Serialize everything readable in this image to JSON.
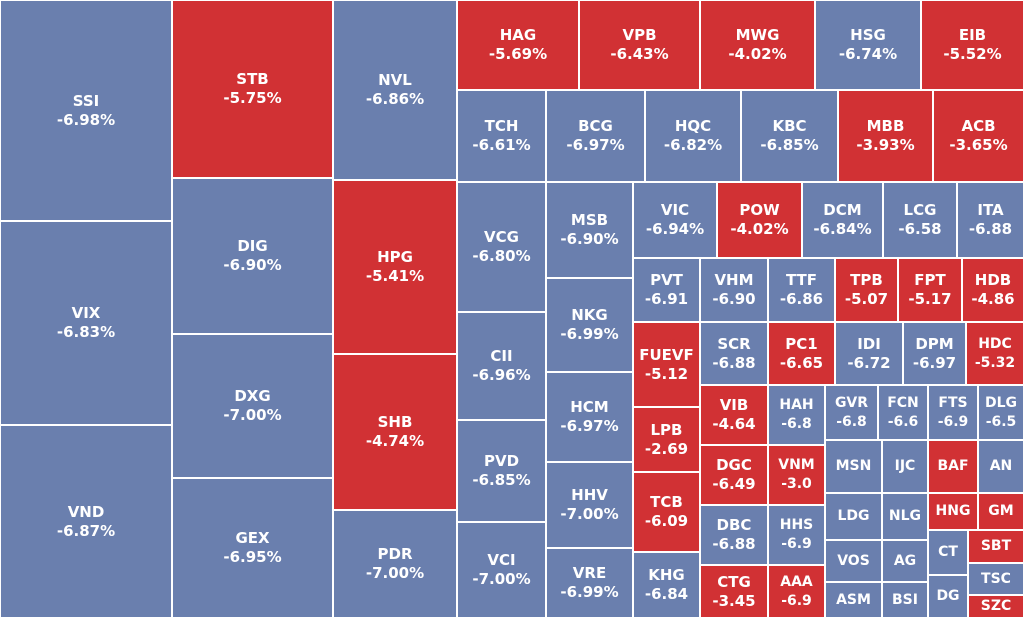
{
  "tiles": [
    {
      "label": "SSI",
      "change": "-6.98%",
      "color": "#6a7fae"
    },
    {
      "label": "VIX",
      "change": "-6.83%",
      "color": "#6a7fae"
    },
    {
      "label": "VND",
      "change": "-6.87%",
      "color": "#6a7fae"
    },
    {
      "label": "STB",
      "change": "-5.75%",
      "color": "#d13134"
    },
    {
      "label": "DIG",
      "change": "-6.90%",
      "color": "#6a7fae"
    },
    {
      "label": "DXG",
      "change": "-7.00%",
      "color": "#6a7fae"
    },
    {
      "label": "GEX",
      "change": "-6.95%",
      "color": "#6a7fae"
    },
    {
      "label": "NVL",
      "change": "-6.86%",
      "color": "#6a7fae"
    },
    {
      "label": "HPG",
      "change": "-5.41%",
      "color": "#d13134"
    },
    {
      "label": "SHB",
      "change": "-4.74%",
      "color": "#d13134"
    },
    {
      "label": "PDR",
      "change": "-7.00%",
      "color": "#6a7fae"
    },
    {
      "label": "HAG",
      "change": "-5.69%",
      "color": "#d13134"
    },
    {
      "label": "VPB",
      "change": "-6.43%",
      "color": "#d13134"
    },
    {
      "label": "MWG",
      "change": "-4.02%",
      "color": "#d13134"
    },
    {
      "label": "HSG",
      "change": "-6.74%",
      "color": "#6a7fae"
    },
    {
      "label": "EIB",
      "change": "-5.52%",
      "color": "#d13134"
    },
    {
      "label": "TCH",
      "change": "-6.61%",
      "color": "#6a7fae"
    },
    {
      "label": "BCG",
      "change": "-6.97%",
      "color": "#6a7fae"
    },
    {
      "label": "HQC",
      "change": "-6.82%",
      "color": "#6a7fae"
    },
    {
      "label": "KBC",
      "change": "-6.85%",
      "color": "#6a7fae"
    },
    {
      "label": "MBB",
      "change": "-3.93%",
      "color": "#d13134"
    },
    {
      "label": "ACB",
      "change": "-3.65%",
      "color": "#d13134"
    },
    {
      "label": "VCG",
      "change": "-6.80%",
      "color": "#6a7fae"
    },
    {
      "label": "CII",
      "change": "-6.96%",
      "color": "#6a7fae"
    },
    {
      "label": "PVD",
      "change": "-6.85%",
      "color": "#6a7fae"
    },
    {
      "label": "VCI",
      "change": "-7.00%",
      "color": "#6a7fae"
    },
    {
      "label": "MSB",
      "change": "-6.90%",
      "color": "#6a7fae"
    },
    {
      "label": "NKG",
      "change": "-6.99%",
      "color": "#6a7fae"
    },
    {
      "label": "HCM",
      "change": "-6.97%",
      "color": "#6a7fae"
    },
    {
      "label": "HHV",
      "change": "-7.00%",
      "color": "#6a7fae"
    },
    {
      "label": "VRE",
      "change": "-6.99%",
      "color": "#6a7fae"
    },
    {
      "label": "VIC",
      "change": "-6.94%",
      "color": "#6a7fae"
    },
    {
      "label": "POW",
      "change": "-4.02%",
      "color": "#d13134"
    },
    {
      "label": "DCM",
      "change": "-6.84%",
      "color": "#6a7fae"
    },
    {
      "label": "LCG",
      "change": "-6.58",
      "color": "#6a7fae"
    },
    {
      "label": "ITA",
      "change": "-6.88",
      "color": "#6a7fae"
    },
    {
      "label": "PVT",
      "change": "-6.91",
      "color": "#6a7fae"
    },
    {
      "label": "FUEVF",
      "change": "-5.12",
      "color": "#d13134"
    },
    {
      "label": "LPB",
      "change": "-2.69",
      "color": "#d13134"
    },
    {
      "label": "TCB",
      "change": "-6.09",
      "color": "#d13134"
    },
    {
      "label": "KHG",
      "change": "-6.84",
      "color": "#6a7fae"
    },
    {
      "label": "VHM",
      "change": "-6.90",
      "color": "#6a7fae"
    },
    {
      "label": "TTF",
      "change": "-6.86",
      "color": "#6a7fae"
    },
    {
      "label": "TPB",
      "change": "-5.07",
      "color": "#d13134"
    },
    {
      "label": "FPT",
      "change": "-5.17",
      "color": "#d13134"
    },
    {
      "label": "HDB",
      "change": "-4.86",
      "color": "#d13134"
    },
    {
      "label": "SCR",
      "change": "-6.88",
      "color": "#6a7fae"
    },
    {
      "label": "PC1",
      "change": "-6.65",
      "color": "#d13134"
    },
    {
      "label": "IDI",
      "change": "-6.72",
      "color": "#6a7fae"
    },
    {
      "label": "DPM",
      "change": "-6.97",
      "color": "#6a7fae"
    },
    {
      "label": "HDC",
      "change": "-5.32",
      "color": "#d13134"
    },
    {
      "label": "VIB",
      "change": "-4.64",
      "color": "#d13134"
    },
    {
      "label": "DGC",
      "change": "-6.49",
      "color": "#d13134"
    },
    {
      "label": "DBC",
      "change": "-6.88",
      "color": "#6a7fae"
    },
    {
      "label": "CTG",
      "change": "-3.45",
      "color": "#d13134"
    },
    {
      "label": "HAH",
      "change": "-6.8",
      "color": "#6a7fae"
    },
    {
      "label": "VNM",
      "change": "-3.0",
      "color": "#d13134"
    },
    {
      "label": "HHS",
      "change": "-6.9",
      "color": "#6a7fae"
    },
    {
      "label": "AAA",
      "change": "-6.9",
      "color": "#d13134"
    },
    {
      "label": "GVR",
      "change": "-6.8",
      "color": "#6a7fae"
    },
    {
      "label": "FCN",
      "change": "-6.6",
      "color": "#6a7fae"
    },
    {
      "label": "FTS",
      "change": "-6.9",
      "color": "#6a7fae"
    },
    {
      "label": "DLG",
      "change": "-6.5",
      "color": "#6a7fae"
    },
    {
      "label": "MSN",
      "color": "#6a7fae"
    },
    {
      "label": "IJC",
      "color": "#6a7fae"
    },
    {
      "label": "BAF",
      "color": "#d13134"
    },
    {
      "label": "AN",
      "color": "#6a7fae"
    },
    {
      "label": "LDG",
      "color": "#6a7fae"
    },
    {
      "label": "NLG",
      "color": "#6a7fae"
    },
    {
      "label": "HNG",
      "color": "#d13134"
    },
    {
      "label": "GM",
      "color": "#d13134"
    },
    {
      "label": "VOS",
      "color": "#6a7fae"
    },
    {
      "label": "AG",
      "color": "#6a7fae"
    },
    {
      "label": "CT",
      "color": "#6a7fae"
    },
    {
      "label": "SBT",
      "color": "#d13134"
    },
    {
      "label": "TSC",
      "color": "#6a7fae"
    },
    {
      "label": "ASM",
      "color": "#6a7fae"
    },
    {
      "label": "BSI",
      "color": "#6a7fae"
    },
    {
      "label": "DG",
      "color": "#6a7fae"
    },
    {
      "label": "SZC",
      "color": "#d13134"
    }
  ]
}
